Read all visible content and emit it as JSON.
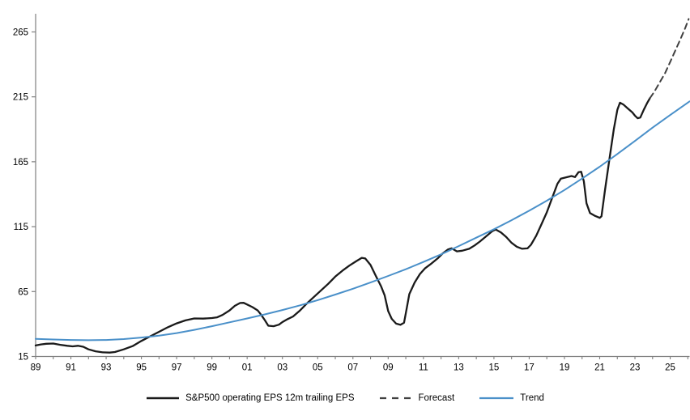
{
  "figure": {
    "background": "#ffffff",
    "axis_color": "#7f7f7f",
    "label_color": "#000000"
  },
  "chart_data": {
    "type": "line",
    "title": "",
    "xlabel": "",
    "ylabel": "",
    "grid": false,
    "legend_position": "bottom",
    "x_range": [
      1989,
      2026.1
    ],
    "y_range": [
      15,
      279
    ],
    "y_ticks": [
      15,
      65,
      115,
      165,
      215,
      265
    ],
    "x_tick_years": [
      1989,
      1991,
      1993,
      1995,
      1997,
      1999,
      2001,
      2003,
      2005,
      2007,
      2009,
      2011,
      2013,
      2015,
      2017,
      2019,
      2021,
      2023,
      2025
    ],
    "x_tick_labels": [
      "89",
      "91",
      "93",
      "95",
      "97",
      "99",
      "01",
      "03",
      "05",
      "07",
      "09",
      "11",
      "13",
      "15",
      "17",
      "19",
      "21",
      "23",
      "25"
    ],
    "x_minor_tick_step": 1,
    "series": [
      {
        "name": "S&P500 operating EPS 12m trailing EPS",
        "style": "solid",
        "color": "#1a1a1a",
        "width": 2.3,
        "points": [
          [
            1989.0,
            23.5
          ],
          [
            1989.3,
            24.3
          ],
          [
            1989.6,
            24.8
          ],
          [
            1990.0,
            25.0
          ],
          [
            1990.4,
            24.0
          ],
          [
            1990.8,
            23.2
          ],
          [
            1991.1,
            22.8
          ],
          [
            1991.4,
            23.2
          ],
          [
            1991.7,
            22.5
          ],
          [
            1992.0,
            20.5
          ],
          [
            1992.4,
            19.0
          ],
          [
            1992.8,
            18.2
          ],
          [
            1993.2,
            18.0
          ],
          [
            1993.5,
            18.4
          ],
          [
            1994.0,
            20.5
          ],
          [
            1994.5,
            23.0
          ],
          [
            1995.0,
            27.0
          ],
          [
            1995.5,
            30.5
          ],
          [
            1996.0,
            34.0
          ],
          [
            1996.5,
            37.5
          ],
          [
            1997.0,
            40.5
          ],
          [
            1997.5,
            42.8
          ],
          [
            1998.0,
            44.3
          ],
          [
            1998.5,
            44.2
          ],
          [
            1999.0,
            44.6
          ],
          [
            1999.3,
            45.2
          ],
          [
            1999.6,
            47.0
          ],
          [
            2000.0,
            50.5
          ],
          [
            2000.3,
            54.0
          ],
          [
            2000.6,
            56.2
          ],
          [
            2000.8,
            56.3
          ],
          [
            2001.0,
            55.0
          ],
          [
            2001.3,
            53.0
          ],
          [
            2001.6,
            50.5
          ],
          [
            2001.8,
            47.0
          ],
          [
            2002.0,
            43.0
          ],
          [
            2002.2,
            38.7
          ],
          [
            2002.5,
            38.3
          ],
          [
            2002.8,
            39.5
          ],
          [
            2003.0,
            41.5
          ],
          [
            2003.3,
            43.8
          ],
          [
            2003.6,
            45.8
          ],
          [
            2004.0,
            50.5
          ],
          [
            2004.4,
            56.0
          ],
          [
            2004.8,
            61.0
          ],
          [
            2005.2,
            66.0
          ],
          [
            2005.6,
            71.0
          ],
          [
            2006.0,
            76.5
          ],
          [
            2006.4,
            81.0
          ],
          [
            2006.8,
            85.0
          ],
          [
            2007.2,
            88.5
          ],
          [
            2007.5,
            91.0
          ],
          [
            2007.7,
            90.5
          ],
          [
            2008.0,
            85.5
          ],
          [
            2008.3,
            77.0
          ],
          [
            2008.6,
            69.0
          ],
          [
            2008.8,
            62.0
          ],
          [
            2009.0,
            50.0
          ],
          [
            2009.2,
            44.0
          ],
          [
            2009.45,
            40.3
          ],
          [
            2009.7,
            39.4
          ],
          [
            2009.9,
            41.0
          ],
          [
            2010.05,
            52.0
          ],
          [
            2010.2,
            63.0
          ],
          [
            2010.5,
            72.0
          ],
          [
            2010.8,
            78.5
          ],
          [
            2011.1,
            83.0
          ],
          [
            2011.4,
            86.0
          ],
          [
            2011.8,
            90.5
          ],
          [
            2012.1,
            94.5
          ],
          [
            2012.4,
            97.5
          ],
          [
            2012.6,
            98.3
          ],
          [
            2012.9,
            96.0
          ],
          [
            2013.2,
            96.5
          ],
          [
            2013.6,
            98.0
          ],
          [
            2013.9,
            100.5
          ],
          [
            2014.2,
            103.5
          ],
          [
            2014.6,
            108.0
          ],
          [
            2014.9,
            111.5
          ],
          [
            2015.1,
            112.8
          ],
          [
            2015.4,
            110.5
          ],
          [
            2015.7,
            107.0
          ],
          [
            2016.0,
            102.5
          ],
          [
            2016.3,
            99.5
          ],
          [
            2016.6,
            98.0
          ],
          [
            2016.9,
            98.3
          ],
          [
            2017.1,
            101.0
          ],
          [
            2017.4,
            108.0
          ],
          [
            2017.7,
            117.0
          ],
          [
            2018.0,
            126.0
          ],
          [
            2018.3,
            137.0
          ],
          [
            2018.6,
            148.0
          ],
          [
            2018.8,
            152.0
          ],
          [
            2019.1,
            153.0
          ],
          [
            2019.4,
            154.0
          ],
          [
            2019.6,
            153.2
          ],
          [
            2019.8,
            157.0
          ],
          [
            2019.95,
            157.3
          ],
          [
            2020.1,
            150.0
          ],
          [
            2020.25,
            133.0
          ],
          [
            2020.45,
            125.5
          ],
          [
            2020.7,
            123.5
          ],
          [
            2021.0,
            121.8
          ],
          [
            2021.1,
            123.0
          ],
          [
            2021.3,
            143.0
          ],
          [
            2021.55,
            167.0
          ],
          [
            2021.8,
            190.0
          ],
          [
            2022.0,
            205.0
          ],
          [
            2022.15,
            210.5
          ],
          [
            2022.35,
            209.0
          ],
          [
            2022.6,
            206.0
          ],
          [
            2022.85,
            203.0
          ],
          [
            2023.0,
            200.5
          ],
          [
            2023.15,
            198.5
          ],
          [
            2023.3,
            199.0
          ],
          [
            2023.5,
            205.0
          ],
          [
            2023.7,
            210.5
          ],
          [
            2023.85,
            214.0
          ]
        ]
      },
      {
        "name": "Forecast",
        "style": "dashed",
        "color": "#404040",
        "width": 2,
        "dash": "7 5",
        "points": [
          [
            2023.85,
            214.0
          ],
          [
            2024.1,
            219.0
          ],
          [
            2024.4,
            226.0
          ],
          [
            2024.7,
            233.0
          ],
          [
            2025.0,
            242.0
          ],
          [
            2025.3,
            251.0
          ],
          [
            2025.6,
            260.0
          ],
          [
            2025.85,
            268.0
          ],
          [
            2026.05,
            275.0
          ]
        ]
      },
      {
        "name": "Trend",
        "style": "solid",
        "color": "#4a90c9",
        "width": 2,
        "points": [
          [
            1989,
            28.6
          ],
          [
            1990,
            28.1
          ],
          [
            1991,
            27.7
          ],
          [
            1992,
            27.5
          ],
          [
            1993,
            27.7
          ],
          [
            1994,
            28.4
          ],
          [
            1995,
            29.6
          ],
          [
            1996,
            31.0
          ],
          [
            1997,
            33.0
          ],
          [
            1998,
            35.5
          ],
          [
            1999,
            38.3
          ],
          [
            2000,
            41.3
          ],
          [
            2001,
            44.3
          ],
          [
            2002,
            47.4
          ],
          [
            2003,
            50.8
          ],
          [
            2004,
            54.4
          ],
          [
            2005,
            58.4
          ],
          [
            2006,
            62.7
          ],
          [
            2007,
            67.2
          ],
          [
            2008,
            72.0
          ],
          [
            2009,
            77.0
          ],
          [
            2010,
            82.2
          ],
          [
            2011,
            87.8
          ],
          [
            2012,
            93.7
          ],
          [
            2013,
            100.0
          ],
          [
            2014,
            106.5
          ],
          [
            2015,
            113.0
          ],
          [
            2016,
            120.0
          ],
          [
            2017,
            127.3
          ],
          [
            2018,
            135.0
          ],
          [
            2019,
            143.2
          ],
          [
            2020,
            152.0
          ],
          [
            2021,
            161.2
          ],
          [
            2022,
            171.0
          ],
          [
            2023,
            181.0
          ],
          [
            2024,
            191.3
          ],
          [
            2025,
            201.0
          ],
          [
            2026.1,
            211.5
          ]
        ]
      }
    ]
  }
}
